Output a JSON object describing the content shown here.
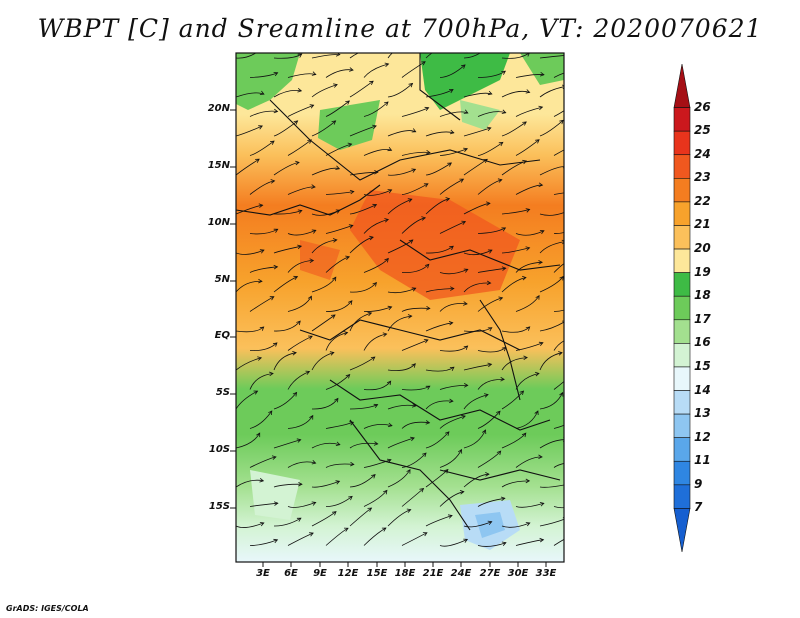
{
  "title": "WBPT [C] and Sreamline at 700hPa, VT: 2020070621",
  "footer": "GrADS: IGES/COLA",
  "map": {
    "lat_labels": [
      "20N",
      "15N",
      "10N",
      "5N",
      "EQ",
      "5S",
      "10S",
      "15S"
    ],
    "lon_labels": [
      "3E",
      "6E",
      "9E",
      "12E",
      "15E",
      "18E",
      "21E",
      "24E",
      "27E",
      "30E",
      "33E"
    ],
    "field": "wet-bulb potential temperature",
    "overlay": "streamlines"
  },
  "colorbar": {
    "labels": [
      "26",
      "25",
      "24",
      "23",
      "22",
      "21",
      "20",
      "19",
      "18",
      "17",
      "16",
      "15",
      "14",
      "13",
      "12",
      "11",
      "9",
      "7"
    ],
    "colors": [
      "#a50f15",
      "#cb181d",
      "#e8341c",
      "#f0581f",
      "#f47d20",
      "#f7a22c",
      "#fbc05b",
      "#fde79a",
      "#3ebb45",
      "#6dcb5a",
      "#a3e08f",
      "#d3f3d3",
      "#e8f7fb",
      "#b8dcf6",
      "#8ec6f1",
      "#5aa7ea",
      "#2f86e2",
      "#1f6fd9",
      "#165fd0"
    ]
  }
}
